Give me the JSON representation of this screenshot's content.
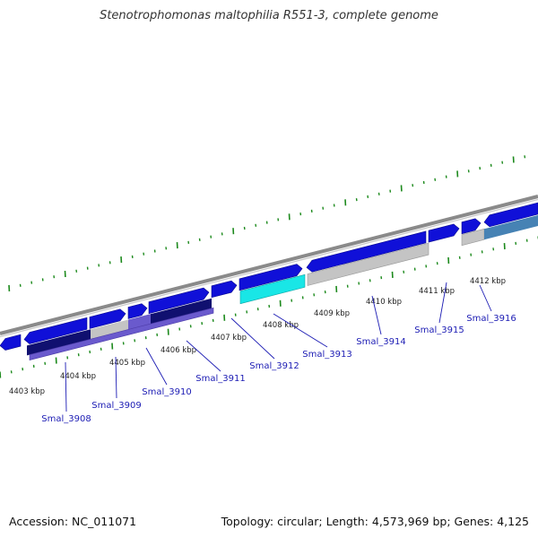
{
  "title": "Stenotrophomonas maltophilia R551-3, complete genome",
  "accession": "Accession: NC_011071",
  "topology": "Topology: circular; Length: 4,573,969 bp; Genes: 4,125",
  "colors": {
    "backbone": "#8a8a8a",
    "tick": "#1d8a1d",
    "cds_forward": "#1010d8",
    "cds_dark": "#101070",
    "cds_purple": "#6a5acd",
    "cds_cyan": "#19e6e6",
    "cds_grey": "#c4c4c4",
    "cds_steel": "#4682b4",
    "label": "#1c1cb4"
  },
  "ticks": [
    "4403 kbp",
    "4404 kbp",
    "4405 kbp",
    "4406 kbp",
    "4407 kbp",
    "4408 kbp",
    "4409 kbp",
    "4410 kbp",
    "4411 kbp",
    "4412 kbp"
  ],
  "genes": [
    "Smal_3908",
    "Smal_3909",
    "Smal_3910",
    "Smal_3911",
    "Smal_3912",
    "Smal_3913",
    "Smal_3914",
    "Smal_3915",
    "Smal_3916"
  ]
}
